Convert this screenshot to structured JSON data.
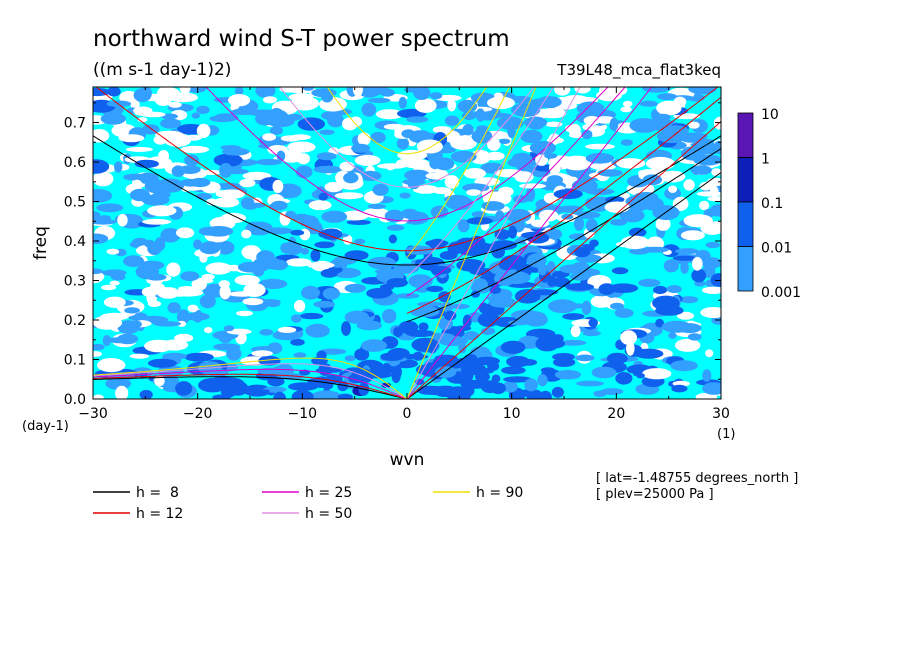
{
  "chart_data": {
    "type": "heatmap",
    "title": "northward wind S-T power spectrum",
    "subtitle": "((m s-1 day-1)2)",
    "run_label": "T39L48_mca_flat3keq",
    "xlabel": "wvn",
    "ylabel": "freq",
    "x_unit": "(1)",
    "y_unit": "(day-1)",
    "xlim": [
      -30,
      30
    ],
    "ylim": [
      0,
      0.79
    ],
    "xticks": [
      -30,
      -20,
      -10,
      0,
      10,
      20,
      30
    ],
    "yticks": [
      0.0,
      0.1,
      0.2,
      0.3,
      0.4,
      0.5,
      0.6,
      0.7
    ],
    "colorbar": {
      "levels": [
        "10",
        "1",
        "0.1",
        "0.01",
        "0.001"
      ],
      "colors": [
        "#5a16b4",
        "#0d1fb8",
        "#1060ee",
        "#33a0ff",
        "#00ffff"
      ]
    },
    "dispersion_curves": [
      {
        "name": "h =  8",
        "h": 8,
        "color": "#000000"
      },
      {
        "name": "h = 12",
        "h": 12,
        "color": "#e60000"
      },
      {
        "name": "h = 25",
        "h": 25,
        "color": "#dd00cc"
      },
      {
        "name": "h = 50",
        "h": 50,
        "color": "#e090e0"
      },
      {
        "name": "h = 90",
        "h": 90,
        "color": "#f0e000"
      }
    ],
    "annotations": [
      "[ lat=-1.48755 degrees_north ]",
      "[ plev=25000 Pa ]"
    ]
  }
}
